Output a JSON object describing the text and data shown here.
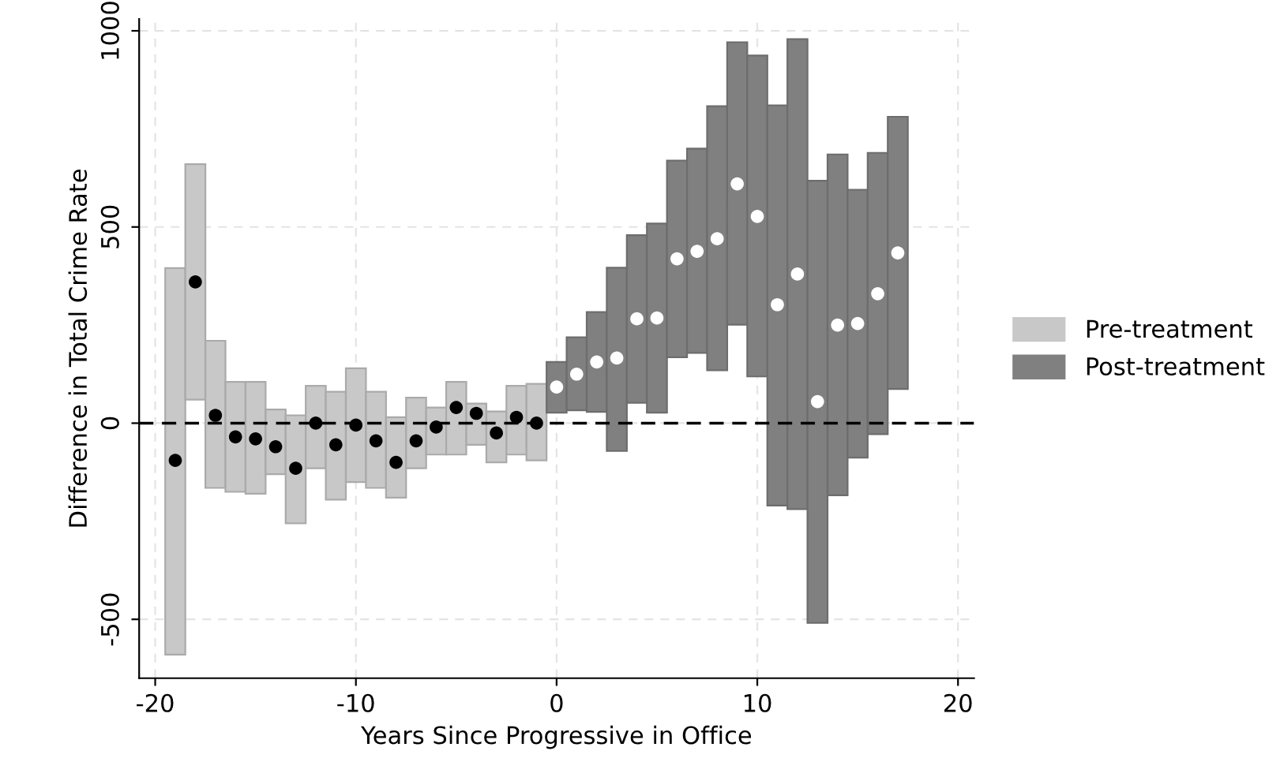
{
  "chart_data": {
    "type": "bar",
    "xlabel": "Years Since Progressive in Office",
    "ylabel": "Difference in Total Crime Rate",
    "series": [
      {
        "name": "Pre-treatment",
        "color": "#c8c8c8",
        "x": [
          -19,
          -18,
          -17,
          -16,
          -15,
          -14,
          -13,
          -12,
          -11,
          -10,
          -9,
          -8,
          -7,
          -6,
          -5,
          -4,
          -3,
          -2,
          -1
        ],
        "base": [
          -590,
          60,
          -165,
          -175,
          -180,
          -130,
          -255,
          -115,
          -195,
          -150,
          -165,
          -190,
          -115,
          -80,
          -80,
          -55,
          -100,
          -80,
          -95
        ],
        "values": [
          985,
          600,
          375,
          280,
          285,
          165,
          275,
          210,
          275,
          290,
          245,
          205,
          180,
          120,
          185,
          105,
          130,
          175,
          195
        ]
      },
      {
        "name": "Post-treatment",
        "color": "#808080",
        "x": [
          0,
          1,
          2,
          3,
          4,
          5,
          6,
          7,
          8,
          9,
          10,
          11,
          12,
          13,
          14,
          15,
          16,
          17
        ],
        "base": [
          27,
          33,
          29,
          -71,
          52,
          27,
          168,
          179,
          135,
          251,
          119,
          -210,
          -219,
          -509,
          -184,
          -88,
          -28,
          87
        ],
        "values": [
          129,
          186,
          254,
          467,
          427,
          482,
          501,
          521,
          673,
          720,
          818,
          1020,
          1198,
          1127,
          869,
          683,
          717,
          694
        ]
      },
      {
        "type": "scatter",
        "color": "#000000",
        "x": [
          -19,
          -18,
          -17,
          -16,
          -15,
          -14,
          -13,
          -12,
          -11,
          -10,
          -9,
          -8,
          -7,
          -6,
          -5,
          -4,
          -3,
          -2,
          -1
        ],
        "values": [
          -95,
          360,
          20,
          -35,
          -40,
          -60,
          -115,
          0,
          -55,
          -5,
          -45,
          -100,
          -45,
          -10,
          40,
          25,
          -25,
          15,
          0
        ]
      },
      {
        "type": "scatter",
        "color": "#ffffff",
        "x": [
          0,
          1,
          2,
          3,
          4,
          5,
          6,
          7,
          8,
          9,
          10,
          11,
          12,
          13,
          14,
          15,
          16,
          17
        ],
        "values": [
          92,
          125,
          156,
          166,
          266,
          268,
          419,
          438,
          470,
          610,
          527,
          302,
          380,
          55,
          250,
          254,
          330,
          434
        ]
      }
    ],
    "xlim": [
      -20.8,
      20.8
    ],
    "ylim": [
      -650,
      1030
    ],
    "xticks": [
      -20,
      -10,
      0,
      10,
      20
    ],
    "yticks": [
      -500,
      0,
      500,
      1000
    ],
    "ref_lines": [
      {
        "axis": "y",
        "value": 0,
        "line_style": "dashed",
        "color": "#000000"
      }
    ],
    "grid": true,
    "legend": "right",
    "marker": "circle"
  }
}
